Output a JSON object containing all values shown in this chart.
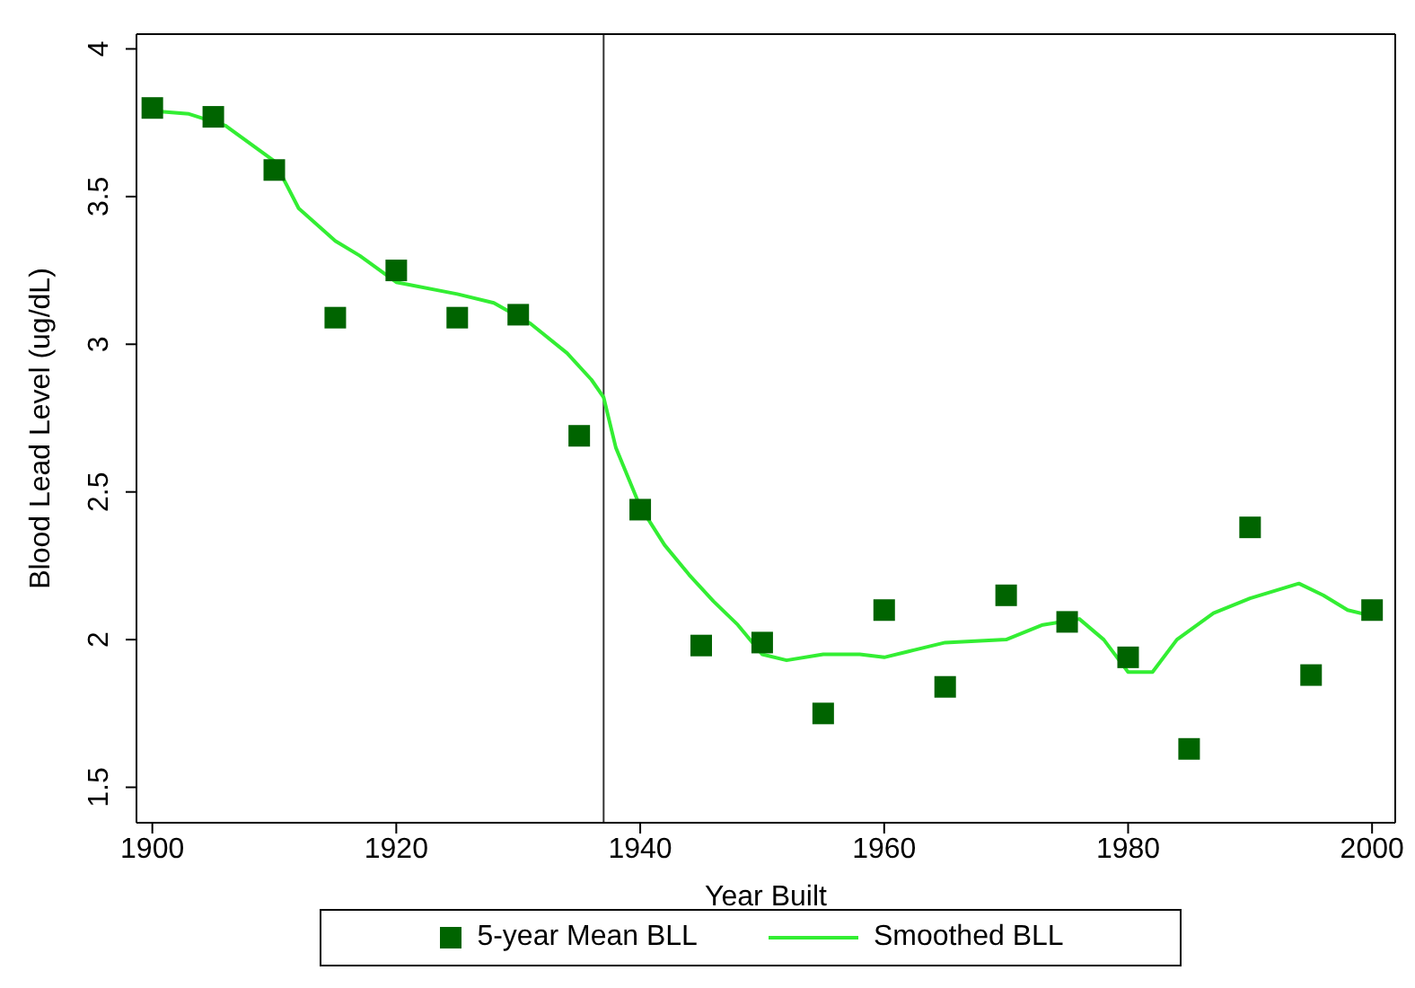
{
  "chart_data": {
    "type": "scatter",
    "xlabel": "Year Built",
    "ylabel": "Blood Lead Level (ug/dL)",
    "xlim": [
      1898.7,
      2001.9
    ],
    "ylim": [
      1.38,
      4.05
    ],
    "xticks": [
      1900,
      1920,
      1940,
      1960,
      1980,
      2000
    ],
    "yticks": [
      1.5,
      2,
      2.5,
      3,
      3.5,
      4
    ],
    "legend": "bottom",
    "ref_lines": [
      {
        "axis": "x",
        "value": 1937,
        "color": "#333333"
      }
    ],
    "series": [
      {
        "name": "5-year Mean BLL",
        "marker": "square",
        "color": "#006400",
        "x": [
          1900,
          1905,
          1910,
          1915,
          1920,
          1925,
          1930,
          1935,
          1940,
          1945,
          1950,
          1955,
          1960,
          1965,
          1970,
          1975,
          1980,
          1985,
          1990,
          1995,
          2000
        ],
        "values": [
          3.8,
          3.77,
          3.59,
          3.09,
          3.25,
          3.09,
          3.1,
          2.69,
          2.44,
          1.98,
          1.99,
          1.75,
          2.1,
          1.84,
          2.15,
          2.06,
          1.94,
          1.63,
          2.38,
          1.88,
          2.1
        ]
      },
      {
        "name": "Smoothed BLL",
        "type": "line",
        "marker": "none",
        "color": "#33ee33",
        "x": [
          1900,
          1903,
          1906,
          1910,
          1912,
          1915,
          1917,
          1920,
          1925,
          1928,
          1931,
          1934,
          1936,
          1937,
          1938,
          1940,
          1942,
          1944,
          1946,
          1948,
          1950,
          1952,
          1955,
          1958,
          1960,
          1962,
          1965,
          1970,
          1973,
          1976,
          1978,
          1980,
          1982,
          1984,
          1987,
          1990,
          1994,
          1996,
          1998,
          2000
        ],
        "values": [
          3.79,
          3.78,
          3.74,
          3.62,
          3.46,
          3.35,
          3.3,
          3.21,
          3.17,
          3.14,
          3.07,
          2.97,
          2.88,
          2.82,
          2.65,
          2.45,
          2.32,
          2.22,
          2.13,
          2.05,
          1.95,
          1.93,
          1.95,
          1.95,
          1.94,
          1.96,
          1.99,
          2.0,
          2.05,
          2.07,
          2.0,
          1.89,
          1.89,
          2.0,
          2.09,
          2.14,
          2.19,
          2.15,
          2.1,
          2.08
        ]
      }
    ]
  }
}
